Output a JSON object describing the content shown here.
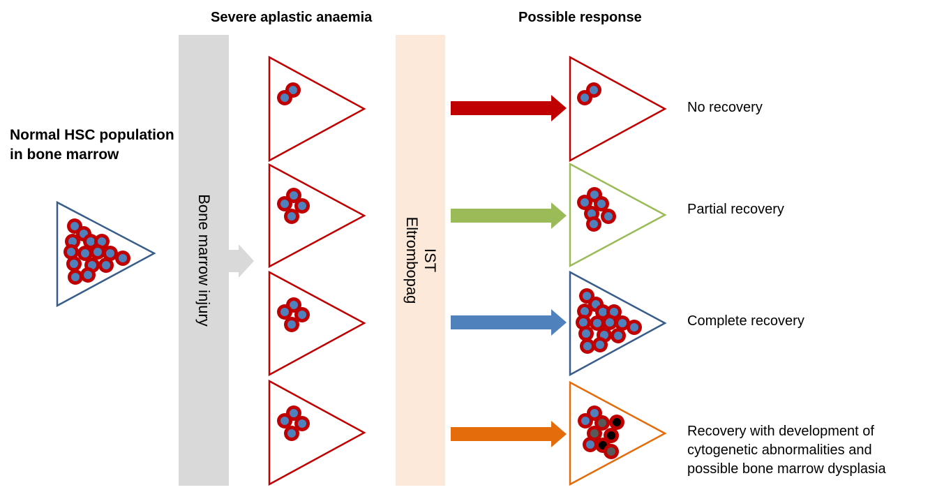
{
  "headers": {
    "severe": "Severe aplastic anaemia",
    "possible": "Possible response"
  },
  "normal": {
    "title": "Normal HSC population in bone marrow"
  },
  "injury_band": {
    "label": "Bone marrow injury",
    "color": "#d9d9d9"
  },
  "treatment_band": {
    "line1": "IST",
    "line2": "Eltrombopag",
    "color": "#fde9d9"
  },
  "responses": [
    {
      "label": "No recovery",
      "arrow_color": "#c00000",
      "triangle_color": "#c00000"
    },
    {
      "label": "Partial recovery",
      "arrow_color": "#9bbb59",
      "triangle_color": "#9bbb59"
    },
    {
      "label": "Complete recovery",
      "arrow_color": "#4f81bd",
      "triangle_color": "#385d8a"
    },
    {
      "label_lines": [
        "Recovery with development of",
        "cytogenetic abnormalities and",
        "possible bone marrow dysplasia"
      ],
      "arrow_color": "#e46c0a",
      "triangle_color": "#e46c0a"
    }
  ],
  "colors": {
    "cell_ring": "#c00000",
    "cell_core": "#4f81bd",
    "abnormal_core_grey": "#595959",
    "abnormal_core_black": "#000000",
    "normal_triangle": "#385d8a",
    "aplastic_triangle": "#c00000"
  }
}
